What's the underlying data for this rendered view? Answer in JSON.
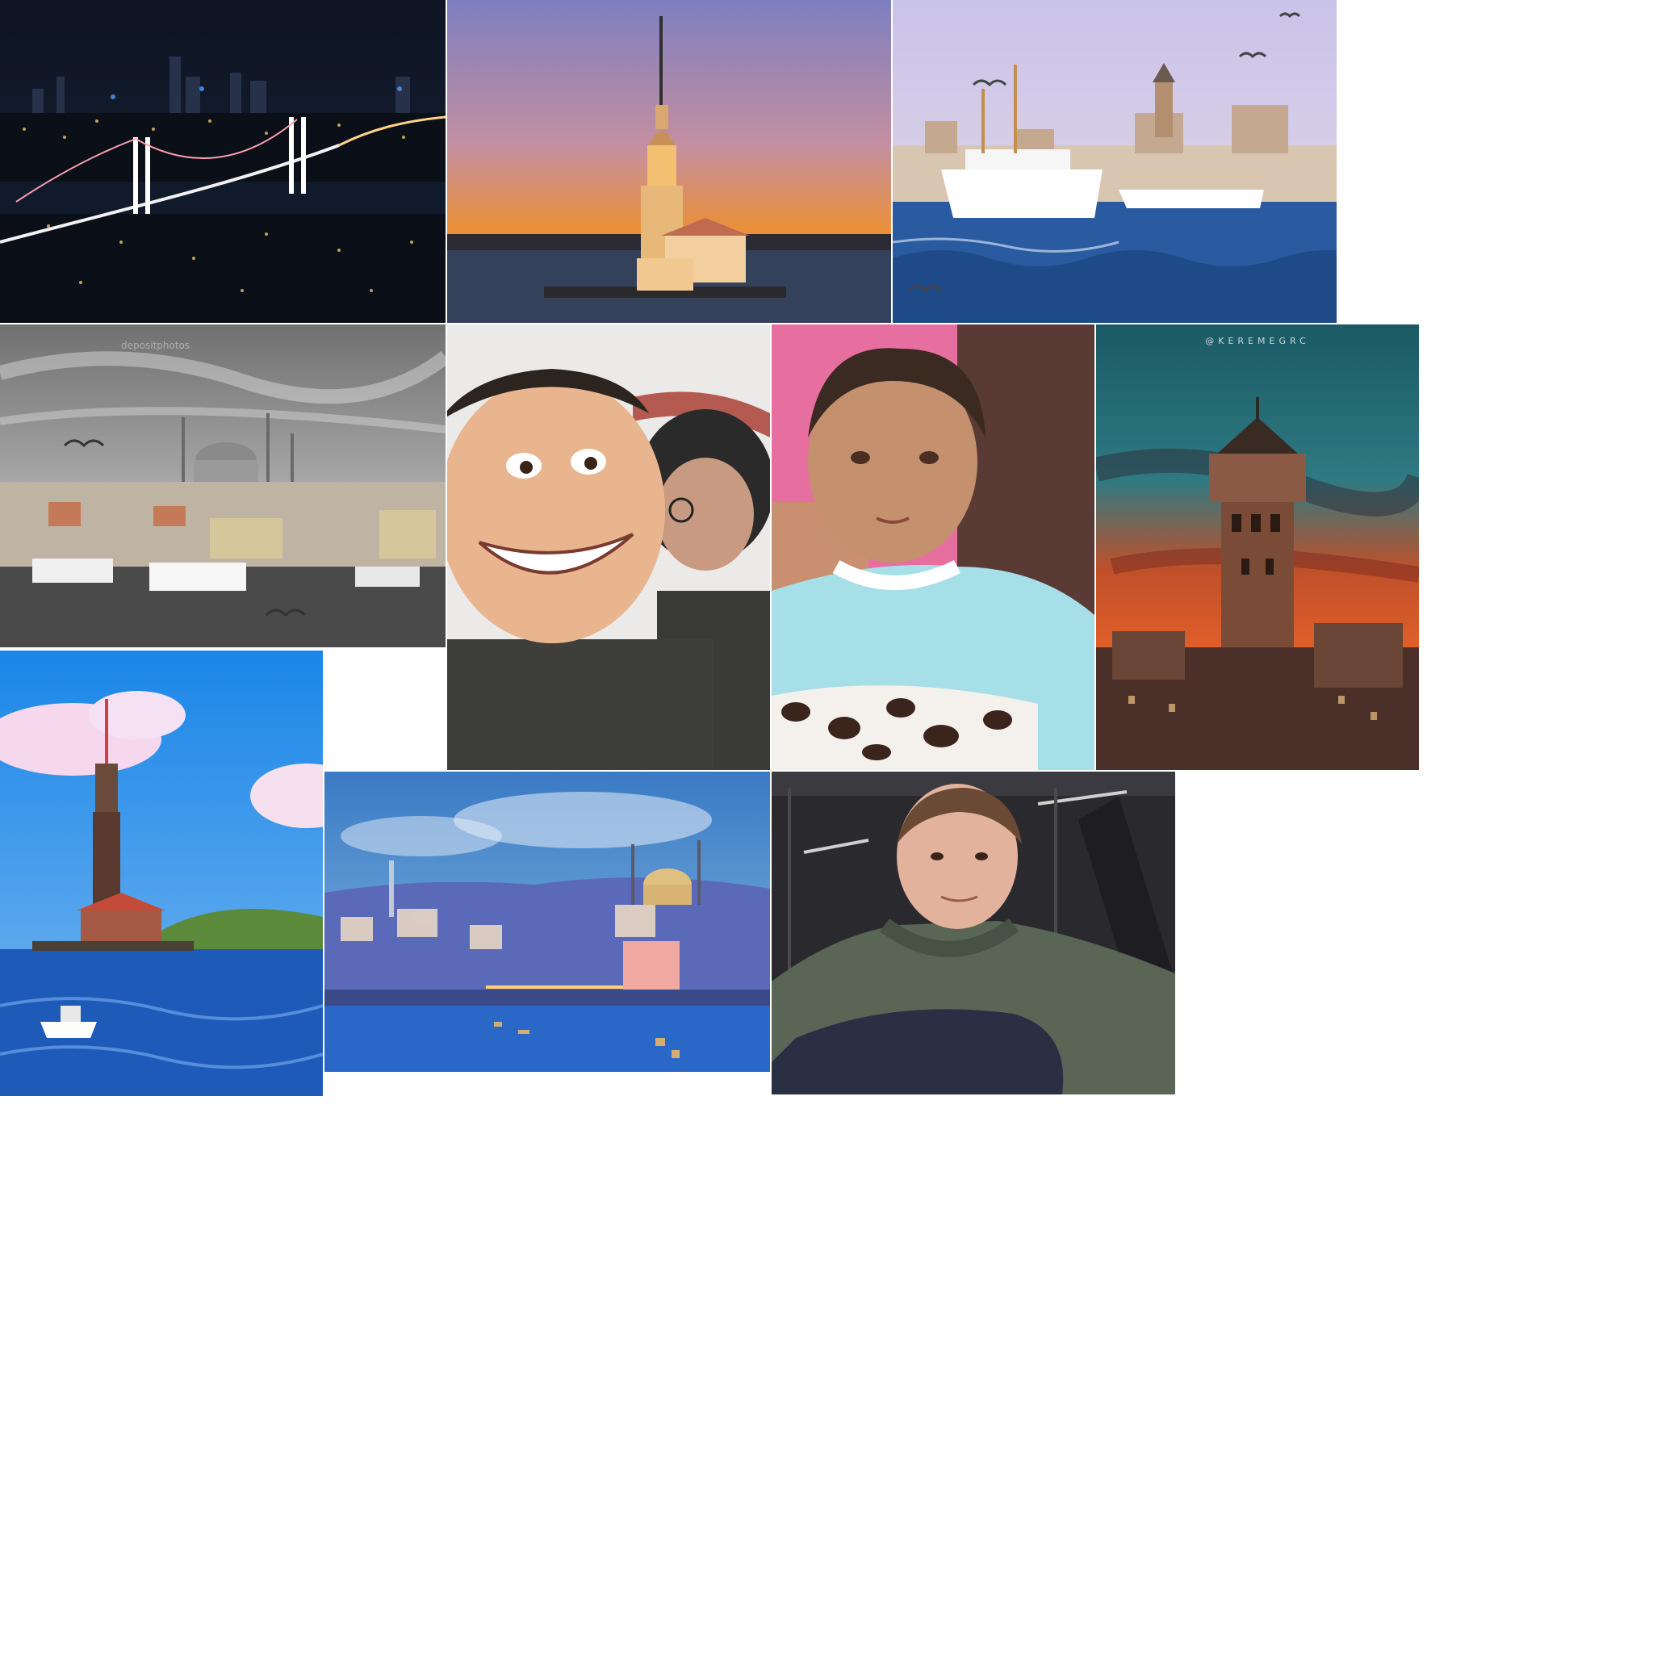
{
  "gallery": {
    "tiles": [
      {
        "subject": "bosphorus-bridge-night"
      },
      {
        "subject": "maidens-tower-sunset"
      },
      {
        "subject": "galata-ferries-seagulls"
      },
      {
        "subject": "old-city-mosque-grayscale",
        "watermark": "depositphotos"
      },
      {
        "subject": "cartoon-selfie"
      },
      {
        "subject": "child-portrait"
      },
      {
        "subject": "galata-tower-sunset",
        "credit": "@KEREMEGRC"
      },
      {
        "subject": "maidens-tower-day"
      },
      {
        "subject": "suleymaniye-dusk"
      },
      {
        "subject": "young-man-portrait"
      }
    ]
  }
}
